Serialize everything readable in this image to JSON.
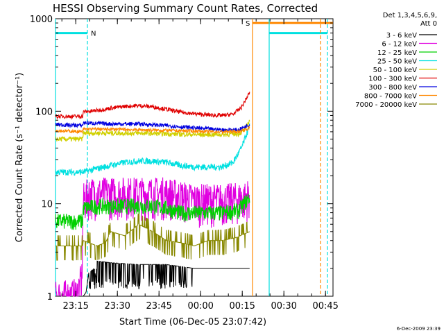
{
  "chart_data": {
    "type": "line",
    "title": "HESSI Observing Summary Count Rates, Corrected",
    "ylabel": "Corrected Count Rate (s⁻¹ detector⁻¹)",
    "xlabel": "Start Time (06-Dec-05 23:07:42)",
    "yscale": "log",
    "ylim": [
      1,
      1000
    ],
    "xlim_minutes": [
      0,
      100
    ],
    "x_ticks": [
      {
        "label": "23:15",
        "minute": 7.3
      },
      {
        "label": "23:30",
        "minute": 22.3
      },
      {
        "label": "23:45",
        "minute": 37.3
      },
      {
        "label": "00:00",
        "minute": 52.3
      },
      {
        "label": "00:15",
        "minute": 67.3
      },
      {
        "label": "00:30",
        "minute": 82.3
      },
      {
        "label": "00:45",
        "minute": 97.3
      }
    ],
    "y_ticks": [
      "1",
      "10",
      "100",
      "1000"
    ],
    "legend_header": [
      "Det 1,3,4,5,6,9,",
      "Att 0"
    ],
    "legend_position": "right",
    "series": [
      {
        "name": "3 - 6 keV",
        "color": "#000000",
        "x": [
          0,
          10,
          11,
          12,
          14,
          14.5,
          15,
          20,
          30,
          40,
          50,
          60,
          70
        ],
        "y": [
          1,
          1,
          1.1,
          1.8,
          2.0,
          1.6,
          2.4,
          2.3,
          2.2,
          2.2,
          2,
          2,
          2
        ]
      },
      {
        "name": "6 - 12 keV",
        "color": "#e000e0",
        "x": [
          0,
          4,
          6,
          8,
          9.5,
          10,
          12,
          20,
          30,
          40,
          45,
          50,
          60,
          68,
          70
        ],
        "y": [
          1,
          1,
          1,
          1.1,
          1.6,
          11,
          13,
          13,
          13,
          13,
          12,
          11,
          11,
          11.5,
          13
        ]
      },
      {
        "name": "12 - 25 keV",
        "color": "#00d000",
        "x": [
          0,
          9.8,
          10,
          15,
          20,
          30,
          35,
          40,
          45,
          50,
          60,
          66,
          70
        ],
        "y": [
          6.5,
          6.5,
          9,
          9.5,
          9.5,
          9.5,
          9.5,
          9,
          8,
          8,
          8,
          8.5,
          12
        ]
      },
      {
        "name": "25 - 50 keV",
        "color": "#00e0e0",
        "x": [
          0,
          10,
          15,
          20,
          25,
          30,
          35,
          40,
          45,
          50,
          55,
          60,
          64,
          67,
          70
        ],
        "y": [
          22,
          22,
          24,
          26,
          28,
          29,
          29,
          28,
          26,
          25,
          25,
          25,
          28,
          40,
          70
        ]
      },
      {
        "name": "50 - 100 keV",
        "color": "#d0d000",
        "x": [
          0,
          9.8,
          10,
          20,
          30,
          40,
          50,
          60,
          66,
          68,
          70
        ],
        "y": [
          50,
          50,
          58,
          58,
          58,
          57,
          56,
          56,
          57,
          62,
          80
        ]
      },
      {
        "name": "100 - 300 keV",
        "color": "#e00000",
        "x": [
          0,
          9.8,
          10,
          15,
          20,
          25,
          30,
          35,
          40,
          45,
          50,
          55,
          60,
          64,
          67,
          70
        ],
        "y": [
          88,
          88,
          98,
          102,
          108,
          113,
          115,
          112,
          105,
          98,
          94,
          91,
          90,
          93,
          110,
          160
        ]
      },
      {
        "name": "300 - 800 keV",
        "color": "#0000e0",
        "x": [
          0,
          9.8,
          10,
          20,
          30,
          40,
          50,
          60,
          66,
          70
        ],
        "y": [
          72,
          70,
          75,
          73,
          73,
          70,
          66,
          63,
          63,
          72
        ]
      },
      {
        "name": "800 - 7000 keV",
        "color": "#ff8800",
        "x": [
          0,
          9.8,
          10,
          20,
          30,
          40,
          50,
          60,
          66,
          70
        ],
        "y": [
          62,
          60,
          64,
          64,
          63,
          62,
          61,
          60,
          60,
          66
        ]
      },
      {
        "name": "7000 - 20000 keV",
        "color": "#888800",
        "x": [
          0,
          5,
          9.8,
          10,
          15,
          18,
          20,
          25,
          30,
          35,
          40,
          45,
          50,
          55,
          60,
          65,
          70
        ],
        "y": [
          3.5,
          3.5,
          3.5,
          4,
          3.5,
          3.8,
          5,
          4.5,
          6,
          5,
          4,
          3.8,
          3.5,
          4,
          4,
          4.3,
          5
        ]
      }
    ],
    "flag_lines": [
      {
        "label": "N",
        "color": "#00e0e0",
        "level": 700,
        "x_start": 0,
        "x_end": 11.5,
        "ends": [
          "solid",
          "dashed"
        ]
      },
      {
        "label": "S",
        "color": "#ff8800",
        "level": 900,
        "x_start": 71,
        "x_end": 100,
        "ends": [
          "solid",
          "none"
        ]
      },
      {
        "label": "",
        "color": "#00e0e0",
        "level": 700,
        "x_start": 77,
        "x_end": 98,
        "ends": [
          "solid",
          "dashed"
        ]
      },
      {
        "label": "",
        "color": "#ff8800",
        "level": 0,
        "x_start": 95.5,
        "x_end": 95.5,
        "ends": [
          "dashed",
          "none"
        ]
      }
    ],
    "footer": "6-Dec-2009 23:39"
  }
}
